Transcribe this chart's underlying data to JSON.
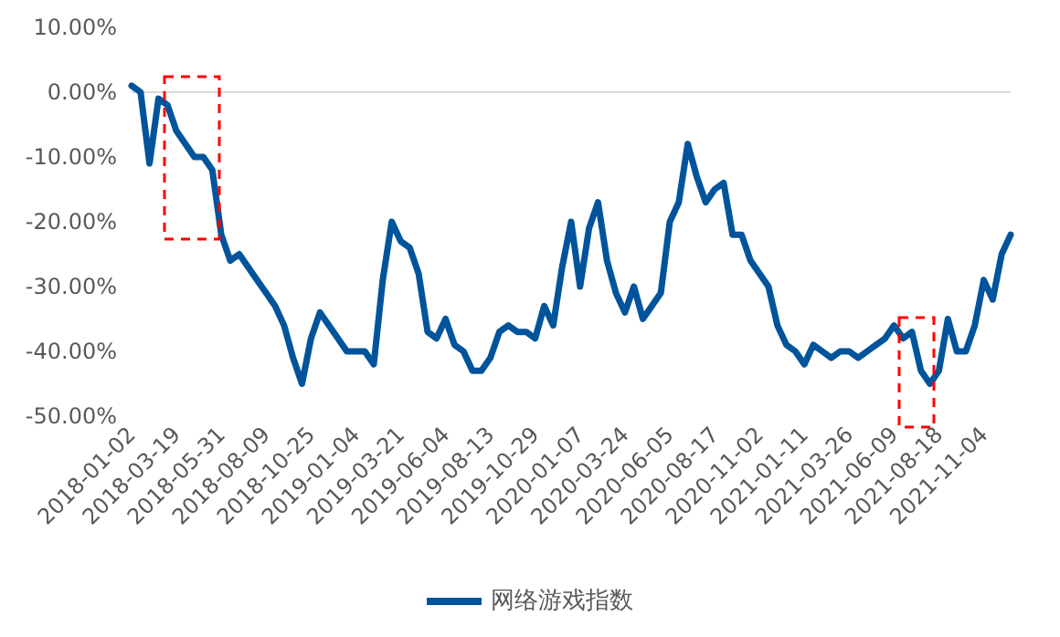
{
  "chart_data": {
    "type": "line",
    "categories": [
      "2018-01-02",
      null,
      null,
      null,
      null,
      "2018-03-19",
      null,
      null,
      null,
      null,
      "2018-05-31",
      null,
      null,
      null,
      null,
      "2018-08-09",
      null,
      null,
      null,
      null,
      "2018-10-25",
      null,
      null,
      null,
      null,
      "2019-01-04",
      null,
      null,
      null,
      null,
      "2019-03-21",
      null,
      null,
      null,
      null,
      "2019-06-04",
      null,
      null,
      null,
      null,
      "2019-08-13",
      null,
      null,
      null,
      null,
      "2019-10-29",
      null,
      null,
      null,
      null,
      "2020-01-07",
      null,
      null,
      null,
      null,
      "2020-03-24",
      null,
      null,
      null,
      null,
      "2020-06-05",
      null,
      null,
      null,
      null,
      "2020-08-17",
      null,
      null,
      null,
      null,
      "2020-11-02",
      null,
      null,
      null,
      null,
      "2021-01-11",
      null,
      null,
      null,
      null,
      "2021-03-26",
      null,
      null,
      null,
      null,
      "2021-06-09",
      null,
      null,
      null,
      null,
      "2021-08-18",
      null,
      null,
      null,
      null,
      "2021-11-04",
      null,
      null,
      null
    ],
    "series": [
      {
        "name": "网络游戏指数",
        "color": "#00549b",
        "values": [
          1,
          0,
          -11,
          -1,
          -2,
          -6,
          -8,
          -10,
          -10,
          -12,
          -22,
          -26,
          -25,
          -27,
          -29,
          -31,
          -33,
          -36,
          -41,
          -45,
          -38,
          -34,
          -36,
          -38,
          -40,
          -40,
          -40,
          -42,
          -29,
          -20,
          -23,
          -24,
          -28,
          -37,
          -38,
          -35,
          -39,
          -40,
          -43,
          -43,
          -41,
          -37,
          -36,
          -37,
          -37,
          -38,
          -33,
          -36,
          -27,
          -20,
          -30,
          -21,
          -17,
          -26,
          -31,
          -34,
          -30,
          -35,
          -33,
          -31,
          -20,
          -17,
          -8,
          -13,
          -17,
          -15,
          -14,
          -22,
          -22,
          -26,
          -28,
          -30,
          -36,
          -39,
          -40,
          -42,
          -39,
          -40,
          -41,
          -40,
          -40,
          -41,
          -40,
          -39,
          -38,
          -36,
          -38,
          -37,
          -43,
          -45,
          -43,
          -35,
          -40,
          -40,
          -36,
          -29,
          -32,
          -25,
          -22
        ]
      }
    ],
    "ylim": [
      -50,
      10
    ],
    "yticks": [
      {
        "value": -50,
        "label": "-50.00%"
      },
      {
        "value": -40,
        "label": "-40.00%"
      },
      {
        "value": -30,
        "label": "-30.00%"
      },
      {
        "value": -20,
        "label": "-20.00%"
      },
      {
        "value": -10,
        "label": "-10.00%"
      },
      {
        "value": 0,
        "label": "0.00%"
      },
      {
        "value": 10,
        "label": "10.00%"
      }
    ],
    "ref_lines": [
      {
        "axis": "y",
        "value": 0,
        "color": "#d9d9d9"
      }
    ],
    "grid": false,
    "legend": "bottom",
    "marker": "none",
    "line_style": "solid"
  }
}
